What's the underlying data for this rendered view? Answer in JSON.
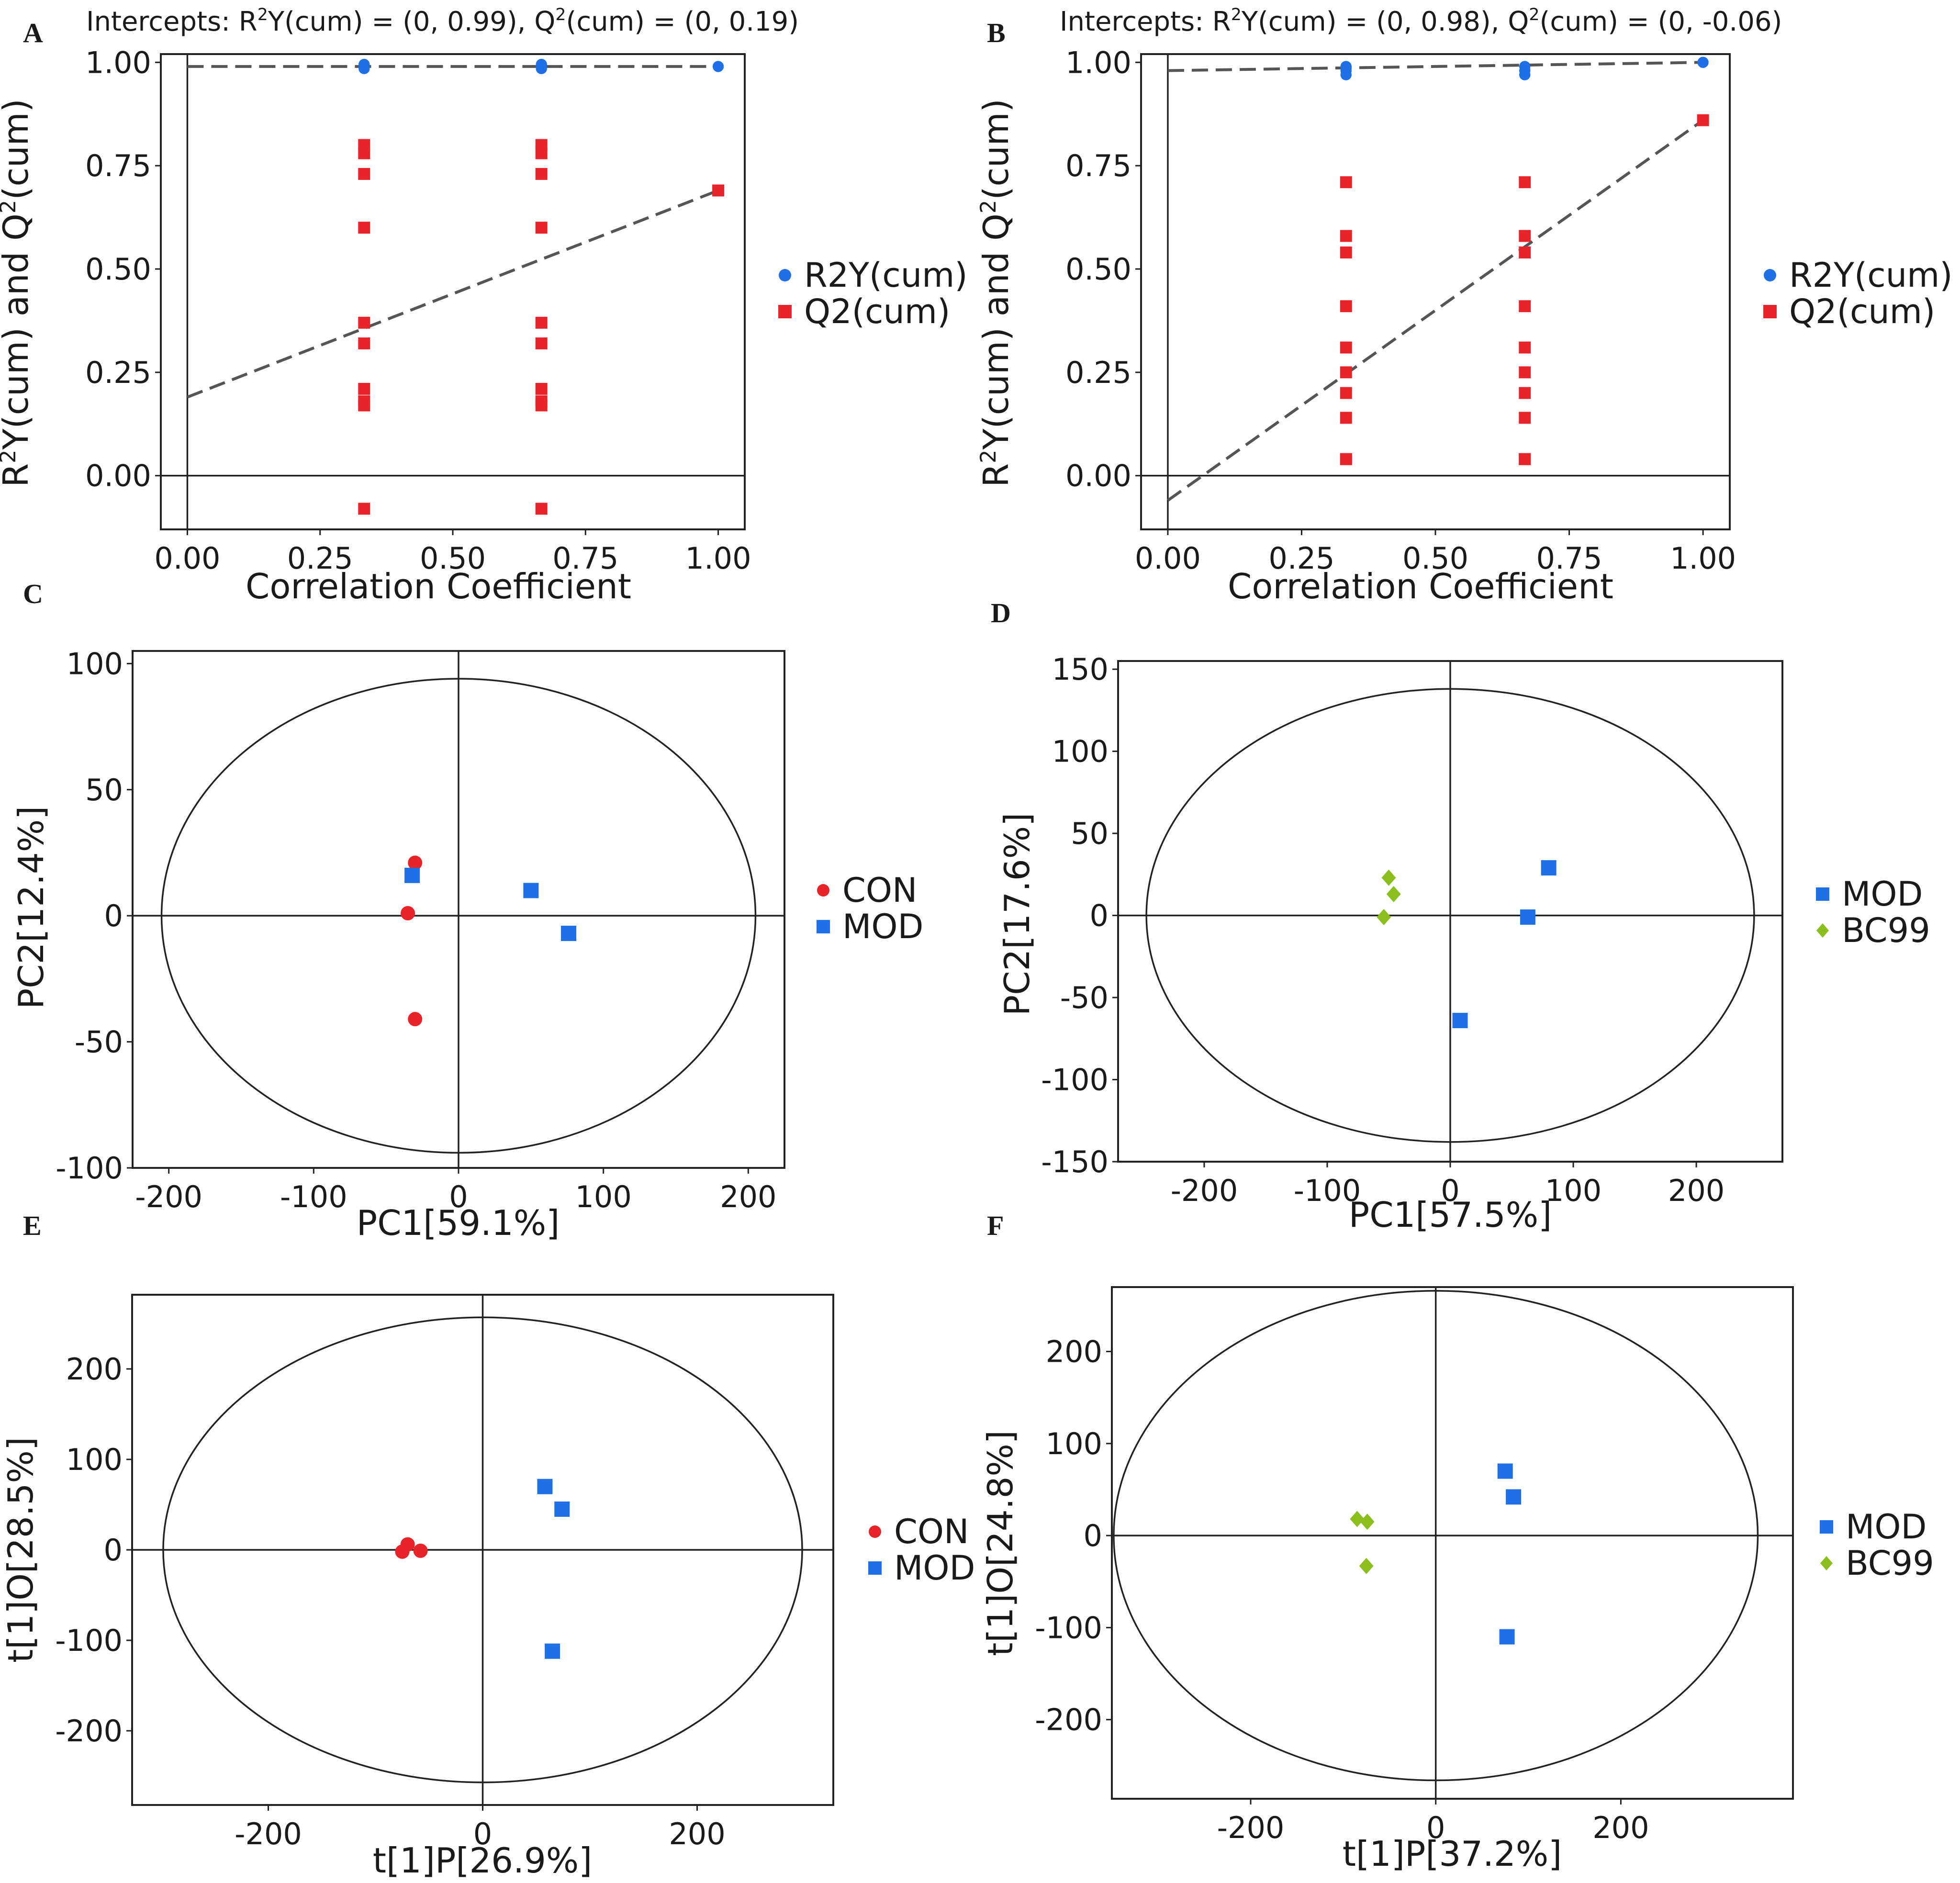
{
  "figure": {
    "panel_letters": [
      "A",
      "B",
      "C",
      "D",
      "E",
      "F"
    ]
  },
  "colors": {
    "blue": "#1f6fe6",
    "red": "#e8242b",
    "green": "#8cbf1e",
    "axis": "#222222",
    "dash": "#555555"
  },
  "chart_data": [
    {
      "id": "A",
      "type": "scatter",
      "subtype": "permutation",
      "title": "Intercepts: R2Y(cum) = (0, 0.99), Q2(cum) = (0, 0.19)",
      "xlabel": "Correlation Coefficient",
      "ylabel": "R2Y(cum) and Q2(cum)",
      "xlim": [
        -0.05,
        1.05
      ],
      "ylim": [
        -0.13,
        1.02
      ],
      "xticks": [
        0,
        0.25,
        0.5,
        0.75,
        1.0
      ],
      "xtick_labels": [
        "0.00",
        "0.25",
        "0.50",
        "0.75",
        "1.00"
      ],
      "yticks": [
        0,
        0.25,
        0.5,
        0.75,
        1.0
      ],
      "ytick_labels": [
        "0.00",
        "0.25",
        "0.50",
        "0.75",
        "1.00"
      ],
      "series": [
        {
          "name": "R2Y(cum)",
          "marker": "circle",
          "color": "#1f6fe6",
          "x": [
            0.333,
            0.333,
            0.333,
            0.667,
            0.667,
            0.667,
            1.0
          ],
          "y": [
            0.99,
            0.995,
            0.985,
            0.99,
            0.995,
            0.985,
            0.99
          ]
        },
        {
          "name": "Q2(cum)",
          "marker": "square",
          "color": "#e8242b",
          "x": [
            0.333,
            0.333,
            0.333,
            0.333,
            0.333,
            0.333,
            0.333,
            0.333,
            0.333,
            0.333,
            0.667,
            0.667,
            0.667,
            0.667,
            0.667,
            0.667,
            0.667,
            0.667,
            0.667,
            0.667,
            1.0
          ],
          "y": [
            0.8,
            0.78,
            0.73,
            0.6,
            0.37,
            0.32,
            0.21,
            0.18,
            0.17,
            -0.08,
            0.8,
            0.78,
            0.73,
            0.6,
            0.37,
            0.32,
            0.21,
            0.18,
            0.17,
            -0.08,
            0.69
          ]
        }
      ],
      "regression_lines": [
        {
          "name": "R2Y",
          "intercept": 0.99,
          "slope": 0.0
        },
        {
          "name": "Q2",
          "intercept": 0.19,
          "slope": 0.5
        }
      ]
    },
    {
      "id": "B",
      "type": "scatter",
      "subtype": "permutation",
      "title": "Intercepts: R2Y(cum) = (0, 0.98), Q2(cum) = (0, -0.06)",
      "xlabel": "Correlation Coefficient",
      "ylabel": "R2Y(cum) and Q2(cum)",
      "xlim": [
        -0.05,
        1.05
      ],
      "ylim": [
        -0.13,
        1.02
      ],
      "xticks": [
        0,
        0.25,
        0.5,
        0.75,
        1.0
      ],
      "xtick_labels": [
        "0.00",
        "0.25",
        "0.50",
        "0.75",
        "1.00"
      ],
      "yticks": [
        0,
        0.25,
        0.5,
        0.75,
        1.0
      ],
      "ytick_labels": [
        "0.00",
        "0.25",
        "0.50",
        "0.75",
        "1.00"
      ],
      "series": [
        {
          "name": "R2Y(cum)",
          "marker": "circle",
          "color": "#1f6fe6",
          "x": [
            0.333,
            0.333,
            0.333,
            0.667,
            0.667,
            0.667,
            1.0
          ],
          "y": [
            0.99,
            0.98,
            0.97,
            0.99,
            0.98,
            0.97,
            1.0
          ]
        },
        {
          "name": "Q2(cum)",
          "marker": "square",
          "color": "#e8242b",
          "x": [
            0.333,
            0.333,
            0.333,
            0.333,
            0.333,
            0.333,
            0.333,
            0.333,
            0.333,
            0.333,
            0.667,
            0.667,
            0.667,
            0.667,
            0.667,
            0.667,
            0.667,
            0.667,
            0.667,
            0.667,
            1.0
          ],
          "y": [
            0.71,
            0.58,
            0.54,
            0.41,
            0.31,
            0.25,
            0.2,
            0.14,
            0.04,
            0.04,
            0.71,
            0.58,
            0.54,
            0.41,
            0.31,
            0.25,
            0.2,
            0.14,
            0.04,
            0.04,
            0.86
          ]
        }
      ],
      "regression_lines": [
        {
          "name": "R2Y",
          "intercept": 0.98,
          "slope": 0.02
        },
        {
          "name": "Q2",
          "intercept": -0.06,
          "slope": 0.92
        }
      ]
    },
    {
      "id": "C",
      "type": "scatter",
      "subtype": "score",
      "title": "",
      "xlabel": "PC1[59.1%]",
      "ylabel": "PC2[12.4%]",
      "xlim": [
        -225,
        225
      ],
      "ylim": [
        -100,
        105
      ],
      "xticks": [
        -200,
        -100,
        0,
        100,
        200
      ],
      "xtick_labels": [
        "-200",
        "-100",
        "0",
        "100",
        "200"
      ],
      "yticks": [
        -100,
        -50,
        0,
        50,
        100
      ],
      "ytick_labels": [
        "-100",
        "-50",
        "0",
        "50",
        "100"
      ],
      "ellipse": {
        "rx": 205,
        "ry": 94
      },
      "series": [
        {
          "name": "CON",
          "marker": "circle",
          "color": "#e8242b",
          "x": [
            -30,
            -35,
            -30
          ],
          "y": [
            21,
            1,
            -41
          ]
        },
        {
          "name": "MOD",
          "marker": "square",
          "color": "#1f6fe6",
          "x": [
            -32,
            50,
            76
          ],
          "y": [
            16,
            10,
            -7
          ]
        }
      ]
    },
    {
      "id": "D",
      "type": "scatter",
      "subtype": "score",
      "title": "",
      "xlabel": "PC1[57.5%]",
      "ylabel": "PC2[17.6%]",
      "xlim": [
        -270,
        270
      ],
      "ylim": [
        -150,
        155
      ],
      "xticks": [
        -200,
        -100,
        0,
        100,
        200
      ],
      "xtick_labels": [
        "-200",
        "-100",
        "0",
        "100",
        "200"
      ],
      "yticks": [
        -150,
        -100,
        -50,
        0,
        50,
        100,
        150
      ],
      "ytick_labels": [
        "-150",
        "-100",
        "-50",
        "0",
        "50",
        "100",
        "150"
      ],
      "ellipse": {
        "rx": 247,
        "ry": 138
      },
      "series": [
        {
          "name": "MOD",
          "marker": "square",
          "color": "#1f6fe6",
          "x": [
            80,
            63,
            8
          ],
          "y": [
            29,
            -1,
            -64
          ]
        },
        {
          "name": "BC99",
          "marker": "diamond",
          "color": "#8cbf1e",
          "x": [
            -50,
            -46,
            -54
          ],
          "y": [
            23,
            13,
            -1
          ]
        }
      ]
    },
    {
      "id": "E",
      "type": "scatter",
      "subtype": "score",
      "title": "",
      "xlabel": "t[1]P[26.9%]",
      "ylabel": "t[1]O[28.5%]",
      "xlim": [
        -327,
        327
      ],
      "ylim": [
        -282,
        282
      ],
      "xticks": [
        -200,
        0,
        200
      ],
      "xtick_labels": [
        "-200",
        "0",
        "200"
      ],
      "yticks": [
        -200,
        -100,
        0,
        100,
        200
      ],
      "ytick_labels": [
        "-200",
        "-100",
        "0",
        "100",
        "200"
      ],
      "ellipse": {
        "rx": 298,
        "ry": 257
      },
      "series": [
        {
          "name": "CON",
          "marker": "circle",
          "color": "#e8242b",
          "x": [
            -70,
            -75,
            -58
          ],
          "y": [
            6,
            -2,
            -1
          ]
        },
        {
          "name": "MOD",
          "marker": "square",
          "color": "#1f6fe6",
          "x": [
            58,
            74,
            65
          ],
          "y": [
            70,
            45,
            -112
          ]
        }
      ]
    },
    {
      "id": "F",
      "type": "scatter",
      "subtype": "score",
      "title": "",
      "xlabel": "t[1]P[37.2%]",
      "ylabel": "t[1]O[24.8%]",
      "xlim": [
        -350,
        386
      ],
      "ylim": [
        -286,
        270
      ],
      "xticks": [
        -200,
        0,
        200
      ],
      "xtick_labels": [
        "-200",
        "0",
        "200"
      ],
      "yticks": [
        -200,
        -100,
        0,
        100,
        200
      ],
      "ytick_labels": [
        "-200",
        "-100",
        "0",
        "100",
        "200"
      ],
      "ellipse": {
        "rx": 348,
        "ry": 266
      },
      "series": [
        {
          "name": "MOD",
          "marker": "square",
          "color": "#1f6fe6",
          "x": [
            75,
            84,
            77
          ],
          "y": [
            70,
            42,
            -110
          ]
        },
        {
          "name": "BC99",
          "marker": "diamond",
          "color": "#8cbf1e",
          "x": [
            -85,
            -74,
            -75
          ],
          "y": [
            18,
            15,
            -33
          ]
        }
      ]
    }
  ]
}
